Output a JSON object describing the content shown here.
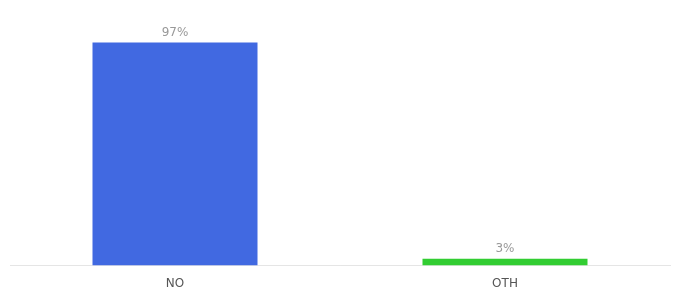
{
  "chart_data": {
    "type": "bar",
    "categories": [
      "NO",
      "OTH"
    ],
    "values": [
      97,
      3
    ],
    "value_labels": [
      "97%",
      "3%"
    ],
    "colors": [
      "#4169e1",
      "#32cd32"
    ],
    "ylim": [
      0,
      105
    ],
    "data_labels": true,
    "tick_labels": "x",
    "grid": false
  }
}
